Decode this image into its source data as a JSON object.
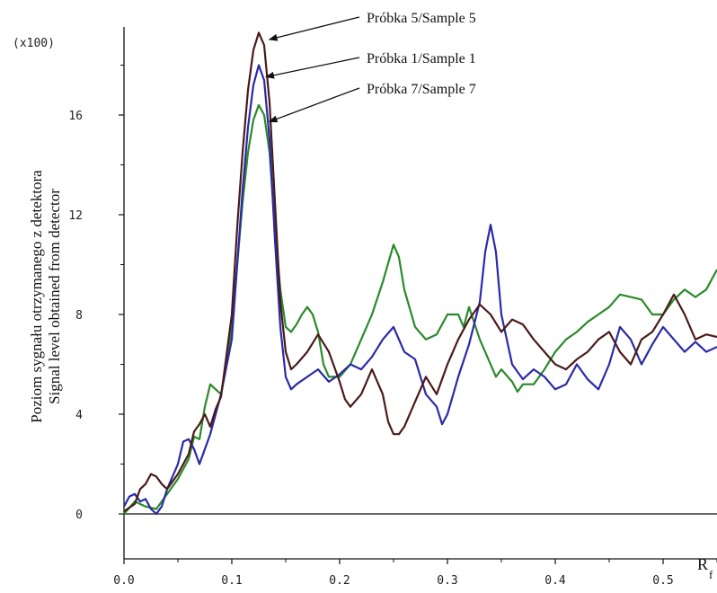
{
  "chart_data": {
    "type": "line",
    "multiplier_label": "(x100)",
    "ylabel_lines": [
      "Poziom sygnału otrzymanego z detektora",
      "Signal level obtained from detector"
    ],
    "xlabel_main": "R",
    "xlabel_sub": "f",
    "xlim": [
      0,
      0.55
    ],
    "ylim": [
      -2.5,
      19.5
    ],
    "x_ticks": [
      {
        "value": 0.0,
        "label": "0.0"
      },
      {
        "value": 0.1,
        "label": "0.1"
      },
      {
        "value": 0.2,
        "label": "0.2"
      },
      {
        "value": 0.3,
        "label": "0.3"
      },
      {
        "value": 0.4,
        "label": "0.4"
      },
      {
        "value": 0.5,
        "label": "0.5"
      }
    ],
    "y_ticks": [
      {
        "value": 0,
        "label": "0"
      },
      {
        "value": 4,
        "label": "4"
      },
      {
        "value": 8,
        "label": "8"
      },
      {
        "value": 12,
        "label": "12"
      },
      {
        "value": 16,
        "label": "16"
      }
    ],
    "y_minor_ticks": [
      2,
      6,
      10,
      14,
      18
    ],
    "series": [
      {
        "name": "Próbka 7/Sample 7",
        "color": "#2a8a2a",
        "label_arrow_x": 0.128,
        "label_arrow_y": 15.8,
        "points": [
          [
            0,
            0
          ],
          [
            0.01,
            0.5
          ],
          [
            0.02,
            0.3
          ],
          [
            0.03,
            0.2
          ],
          [
            0.04,
            0.8
          ],
          [
            0.05,
            1.4
          ],
          [
            0.06,
            2.2
          ],
          [
            0.065,
            3.1
          ],
          [
            0.07,
            3.0
          ],
          [
            0.075,
            4.3
          ],
          [
            0.08,
            5.2
          ],
          [
            0.085,
            5.0
          ],
          [
            0.09,
            4.8
          ],
          [
            0.1,
            7.5
          ],
          [
            0.105,
            10
          ],
          [
            0.11,
            12.5
          ],
          [
            0.115,
            14.5
          ],
          [
            0.12,
            15.8
          ],
          [
            0.125,
            16.4
          ],
          [
            0.13,
            16.0
          ],
          [
            0.135,
            14.5
          ],
          [
            0.14,
            11.5
          ],
          [
            0.145,
            9.0
          ],
          [
            0.15,
            7.5
          ],
          [
            0.155,
            7.3
          ],
          [
            0.16,
            7.6
          ],
          [
            0.165,
            8.0
          ],
          [
            0.17,
            8.3
          ],
          [
            0.175,
            8.0
          ],
          [
            0.18,
            7.3
          ],
          [
            0.185,
            6.0
          ],
          [
            0.19,
            5.5
          ],
          [
            0.2,
            5.5
          ],
          [
            0.21,
            6.0
          ],
          [
            0.22,
            7.0
          ],
          [
            0.23,
            8.0
          ],
          [
            0.24,
            9.3
          ],
          [
            0.25,
            10.8
          ],
          [
            0.255,
            10.3
          ],
          [
            0.26,
            9.0
          ],
          [
            0.27,
            7.5
          ],
          [
            0.28,
            7.0
          ],
          [
            0.29,
            7.2
          ],
          [
            0.3,
            8.0
          ],
          [
            0.31,
            8.0
          ],
          [
            0.315,
            7.5
          ],
          [
            0.32,
            8.3
          ],
          [
            0.33,
            7.0
          ],
          [
            0.34,
            6.0
          ],
          [
            0.345,
            5.5
          ],
          [
            0.35,
            5.8
          ],
          [
            0.36,
            5.3
          ],
          [
            0.365,
            4.9
          ],
          [
            0.37,
            5.2
          ],
          [
            0.38,
            5.2
          ],
          [
            0.39,
            5.8
          ],
          [
            0.4,
            6.5
          ],
          [
            0.41,
            7.0
          ],
          [
            0.42,
            7.3
          ],
          [
            0.43,
            7.7
          ],
          [
            0.44,
            8.0
          ],
          [
            0.45,
            8.3
          ],
          [
            0.46,
            8.8
          ],
          [
            0.47,
            8.7
          ],
          [
            0.48,
            8.6
          ],
          [
            0.49,
            8.0
          ],
          [
            0.5,
            8.0
          ],
          [
            0.51,
            8.6
          ],
          [
            0.52,
            9.0
          ],
          [
            0.53,
            8.7
          ],
          [
            0.54,
            9.0
          ],
          [
            0.55,
            9.8
          ]
        ]
      },
      {
        "name": "Próbka 1/Sample 1",
        "color": "#2a2aa8",
        "label_arrow_x": 0.125,
        "label_arrow_y": 17.6,
        "points": [
          [
            0,
            0.3
          ],
          [
            0.005,
            0.7
          ],
          [
            0.01,
            0.8
          ],
          [
            0.015,
            0.5
          ],
          [
            0.02,
            0.6
          ],
          [
            0.025,
            0.2
          ],
          [
            0.03,
            0.0
          ],
          [
            0.035,
            0.3
          ],
          [
            0.04,
            1.0
          ],
          [
            0.05,
            2.0
          ],
          [
            0.055,
            2.9
          ],
          [
            0.06,
            3.0
          ],
          [
            0.065,
            2.6
          ],
          [
            0.07,
            2.0
          ],
          [
            0.08,
            3.2
          ],
          [
            0.09,
            4.8
          ],
          [
            0.1,
            7.0
          ],
          [
            0.105,
            10
          ],
          [
            0.11,
            13
          ],
          [
            0.115,
            15.5
          ],
          [
            0.12,
            17.2
          ],
          [
            0.125,
            18.0
          ],
          [
            0.13,
            17.4
          ],
          [
            0.135,
            15.0
          ],
          [
            0.14,
            11.0
          ],
          [
            0.145,
            7.5
          ],
          [
            0.15,
            5.5
          ],
          [
            0.155,
            5.0
          ],
          [
            0.16,
            5.2
          ],
          [
            0.17,
            5.5
          ],
          [
            0.18,
            5.8
          ],
          [
            0.19,
            5.3
          ],
          [
            0.2,
            5.6
          ],
          [
            0.21,
            6.0
          ],
          [
            0.22,
            5.8
          ],
          [
            0.23,
            6.3
          ],
          [
            0.24,
            7.0
          ],
          [
            0.25,
            7.5
          ],
          [
            0.255,
            7.0
          ],
          [
            0.26,
            6.5
          ],
          [
            0.27,
            6.2
          ],
          [
            0.28,
            4.8
          ],
          [
            0.29,
            4.3
          ],
          [
            0.295,
            3.6
          ],
          [
            0.3,
            4.0
          ],
          [
            0.31,
            5.5
          ],
          [
            0.32,
            6.8
          ],
          [
            0.33,
            8.5
          ],
          [
            0.335,
            10.5
          ],
          [
            0.34,
            11.6
          ],
          [
            0.345,
            10.5
          ],
          [
            0.35,
            8.0
          ],
          [
            0.36,
            6.0
          ],
          [
            0.37,
            5.4
          ],
          [
            0.38,
            5.8
          ],
          [
            0.39,
            5.5
          ],
          [
            0.4,
            5.0
          ],
          [
            0.41,
            5.2
          ],
          [
            0.42,
            6.0
          ],
          [
            0.43,
            5.4
          ],
          [
            0.44,
            5.0
          ],
          [
            0.45,
            6.0
          ],
          [
            0.46,
            7.5
          ],
          [
            0.47,
            7.0
          ],
          [
            0.48,
            6.0
          ],
          [
            0.49,
            6.8
          ],
          [
            0.5,
            7.5
          ],
          [
            0.51,
            7.0
          ],
          [
            0.52,
            6.5
          ],
          [
            0.53,
            6.9
          ],
          [
            0.54,
            6.5
          ],
          [
            0.55,
            6.7
          ]
        ]
      },
      {
        "name": "Próbka 5/Sample 5",
        "color": "#4a1a1a",
        "label_arrow_x": 0.128,
        "label_arrow_y": 19.1,
        "points": [
          [
            0,
            0.1
          ],
          [
            0.01,
            0.4
          ],
          [
            0.015,
            1.0
          ],
          [
            0.02,
            1.2
          ],
          [
            0.025,
            1.6
          ],
          [
            0.03,
            1.5
          ],
          [
            0.035,
            1.2
          ],
          [
            0.04,
            1.0
          ],
          [
            0.05,
            1.6
          ],
          [
            0.06,
            2.4
          ],
          [
            0.065,
            3.3
          ],
          [
            0.07,
            3.6
          ],
          [
            0.075,
            4.0
          ],
          [
            0.08,
            3.5
          ],
          [
            0.085,
            4.2
          ],
          [
            0.09,
            4.7
          ],
          [
            0.1,
            8.0
          ],
          [
            0.105,
            11.5
          ],
          [
            0.11,
            14.5
          ],
          [
            0.115,
            17.0
          ],
          [
            0.12,
            18.6
          ],
          [
            0.125,
            19.3
          ],
          [
            0.13,
            18.8
          ],
          [
            0.135,
            16.5
          ],
          [
            0.14,
            12.5
          ],
          [
            0.145,
            8.5
          ],
          [
            0.15,
            6.5
          ],
          [
            0.155,
            5.8
          ],
          [
            0.16,
            6.0
          ],
          [
            0.17,
            6.5
          ],
          [
            0.18,
            7.2
          ],
          [
            0.19,
            6.5
          ],
          [
            0.2,
            5.3
          ],
          [
            0.205,
            4.6
          ],
          [
            0.21,
            4.3
          ],
          [
            0.22,
            4.8
          ],
          [
            0.23,
            5.8
          ],
          [
            0.24,
            4.8
          ],
          [
            0.245,
            3.7
          ],
          [
            0.25,
            3.2
          ],
          [
            0.255,
            3.2
          ],
          [
            0.26,
            3.5
          ],
          [
            0.27,
            4.5
          ],
          [
            0.28,
            5.5
          ],
          [
            0.29,
            4.8
          ],
          [
            0.3,
            6.0
          ],
          [
            0.31,
            7.0
          ],
          [
            0.32,
            7.8
          ],
          [
            0.33,
            8.4
          ],
          [
            0.34,
            8.0
          ],
          [
            0.35,
            7.3
          ],
          [
            0.36,
            7.8
          ],
          [
            0.37,
            7.6
          ],
          [
            0.38,
            7.0
          ],
          [
            0.39,
            6.5
          ],
          [
            0.4,
            6.0
          ],
          [
            0.41,
            5.8
          ],
          [
            0.42,
            6.2
          ],
          [
            0.43,
            6.5
          ],
          [
            0.44,
            7.0
          ],
          [
            0.45,
            7.3
          ],
          [
            0.46,
            6.5
          ],
          [
            0.47,
            6.0
          ],
          [
            0.48,
            7.0
          ],
          [
            0.49,
            7.3
          ],
          [
            0.5,
            8.0
          ],
          [
            0.51,
            8.8
          ],
          [
            0.52,
            8.0
          ],
          [
            0.53,
            7.0
          ],
          [
            0.54,
            7.2
          ],
          [
            0.55,
            7.1
          ]
        ]
      }
    ]
  }
}
